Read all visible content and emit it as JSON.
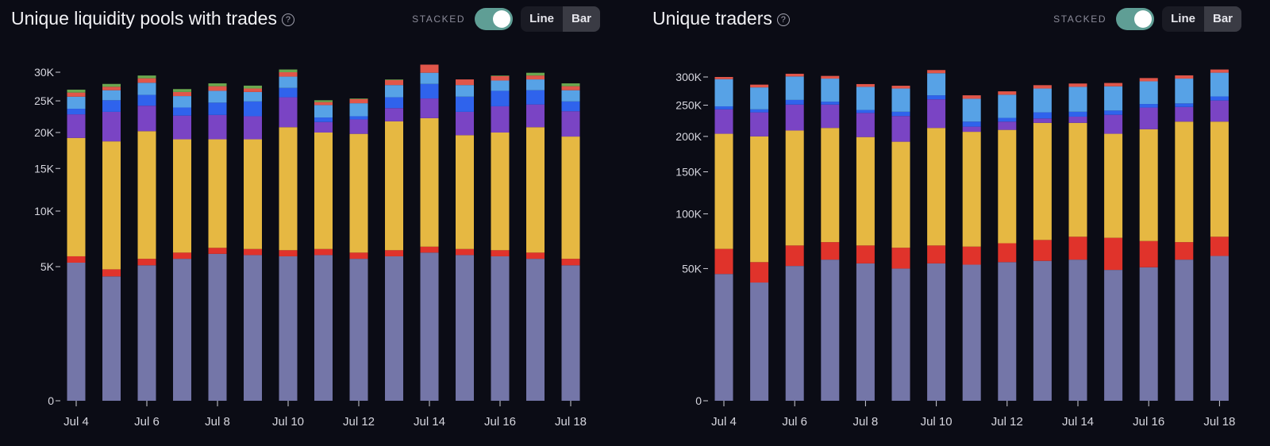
{
  "controls": {
    "stacked_label": "STACKED",
    "stacked_on": true,
    "line_label": "Line",
    "bar_label": "Bar",
    "active_mode": "Bar"
  },
  "palette": [
    "#7476a8",
    "#e0332b",
    "#e6b842",
    "#7a44c4",
    "#2f63ec",
    "#57a2e6",
    "#e0564a",
    "#6aa84f"
  ],
  "chart_data": [
    {
      "type": "bar",
      "title": "Unique liquidity pools with trades",
      "stacked": true,
      "scale": "sqrt",
      "ylim": [
        0,
        30000
      ],
      "yticks": [
        0,
        5000,
        10000,
        15000,
        20000,
        25000,
        30000
      ],
      "ytick_labels": [
        "0",
        "5K",
        "10K",
        "15K",
        "20K",
        "25K",
        "30K"
      ],
      "categories": [
        "Jul 4",
        "Jul 5",
        "Jul 6",
        "Jul 7",
        "Jul 8",
        "Jul 9",
        "Jul 10",
        "Jul 11",
        "Jul 12",
        "Jul 13",
        "Jul 14",
        "Jul 15",
        "Jul 16",
        "Jul 17",
        "Jul 18"
      ],
      "xtick_labels": [
        "Jul 4",
        "",
        "Jul 6",
        "",
        "Jul 8",
        "",
        "Jul 10",
        "",
        "Jul 12",
        "",
        "Jul 14",
        "",
        "Jul 16",
        "",
        "Jul 18"
      ],
      "series": [
        {
          "color": "#7476a8",
          "values": [
            5300,
            4300,
            5100,
            5600,
            6000,
            5900,
            5800,
            5900,
            5600,
            5800,
            6100,
            5900,
            5800,
            5600,
            5100
          ]
        },
        {
          "color": "#e0332b",
          "values": [
            500,
            500,
            500,
            500,
            500,
            500,
            500,
            500,
            500,
            500,
            500,
            500,
            500,
            500,
            500
          ]
        },
        {
          "color": "#e6b842",
          "values": [
            13400,
            13900,
            14600,
            12900,
            12500,
            12600,
            14500,
            13600,
            13700,
            15400,
            15600,
            13200,
            13700,
            14700,
            13800
          ]
        },
        {
          "color": "#7a44c4",
          "values": [
            3600,
            4500,
            4000,
            3600,
            3700,
            3500,
            4800,
            1600,
            2200,
            2100,
            3200,
            3600,
            4100,
            3600,
            3900
          ]
        },
        {
          "color": "#2f63ec",
          "values": [
            900,
            1900,
            1800,
            1300,
            2000,
            2400,
            1600,
            700,
            500,
            1800,
            2500,
            2500,
            2600,
            2400,
            1600
          ]
        },
        {
          "color": "#57a2e6",
          "values": [
            2000,
            1700,
            2100,
            1900,
            2000,
            1600,
            2000,
            2000,
            2100,
            2100,
            2000,
            2000,
            1800,
            1900,
            1900
          ]
        },
        {
          "color": "#e0564a",
          "values": [
            700,
            600,
            800,
            700,
            800,
            600,
            800,
            500,
            700,
            900,
            1500,
            1000,
            800,
            700,
            700
          ]
        },
        {
          "color": "#6aa84f",
          "values": [
            500,
            500,
            500,
            500,
            500,
            500,
            500,
            300,
            100,
            100,
            0,
            0,
            100,
            500,
            500
          ]
        }
      ]
    },
    {
      "type": "bar",
      "title": "Unique traders",
      "stacked": true,
      "scale": "sqrt",
      "ylim": [
        0,
        300000
      ],
      "yticks": [
        0,
        50000,
        100000,
        150000,
        200000,
        250000,
        300000
      ],
      "ytick_labels": [
        "0",
        "50K",
        "100K",
        "150K",
        "200K",
        "250K",
        "300K"
      ],
      "categories": [
        "Jul 4",
        "Jul 5",
        "Jul 6",
        "Jul 7",
        "Jul 8",
        "Jul 9",
        "Jul 10",
        "Jul 11",
        "Jul 12",
        "Jul 13",
        "Jul 14",
        "Jul 15",
        "Jul 16",
        "Jul 17",
        "Jul 18"
      ],
      "xtick_labels": [
        "Jul 4",
        "",
        "Jul 6",
        "",
        "Jul 8",
        "",
        "Jul 10",
        "",
        "Jul 12",
        "",
        "Jul 14",
        "",
        "Jul 16",
        "",
        "Jul 18"
      ],
      "series": [
        {
          "color": "#7476a8",
          "values": [
            46000,
            40000,
            52000,
            57000,
            54000,
            50000,
            54000,
            53000,
            55000,
            56000,
            57000,
            49000,
            51000,
            57000,
            60000
          ]
        },
        {
          "color": "#e0332b",
          "values": [
            20000,
            15000,
            17000,
            15000,
            15000,
            17000,
            15000,
            15000,
            16000,
            18000,
            20000,
            27000,
            22000,
            15000,
            17000
          ]
        },
        {
          "color": "#e6b842",
          "values": [
            138000,
            145000,
            140000,
            141000,
            130000,
            125000,
            144000,
            139000,
            139000,
            147000,
            144000,
            128000,
            138000,
            151000,
            146000
          ]
        },
        {
          "color": "#7a44c4",
          "values": [
            39000,
            38000,
            42000,
            38000,
            38000,
            40000,
            47000,
            8000,
            13000,
            7000,
            10000,
            30000,
            35000,
            24000,
            35000
          ]
        },
        {
          "color": "#2f63ec",
          "values": [
            5000,
            5000,
            8000,
            5000,
            5000,
            7000,
            7000,
            8000,
            6000,
            10000,
            8000,
            7000,
            6000,
            6000,
            7000
          ]
        },
        {
          "color": "#57a2e6",
          "values": [
            48000,
            38000,
            42000,
            41000,
            40000,
            40000,
            40000,
            38000,
            39000,
            41000,
            43000,
            42000,
            40000,
            44000,
            43000
          ]
        },
        {
          "color": "#e0564a",
          "values": [
            4000,
            5000,
            5000,
            5000,
            5000,
            5000,
            6000,
            6000,
            6000,
            6000,
            6000,
            6000,
            6000,
            6000,
            6000
          ]
        }
      ]
    }
  ]
}
